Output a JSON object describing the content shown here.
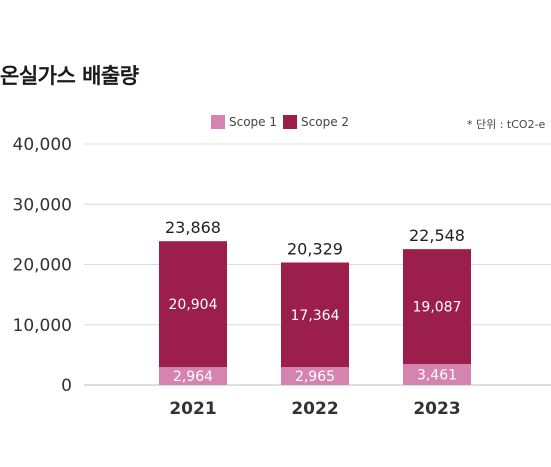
{
  "title": "온실가스 배출량",
  "unit_note": "* 단위 : tCO2-e",
  "colors": {
    "scope1": "#d584b0",
    "scope2": "#9b1f4a",
    "grid": "#dcdcdc",
    "axis": "#bdbdbd"
  },
  "chart_data": {
    "type": "bar",
    "stacked": true,
    "categories": [
      "2021",
      "2022",
      "2023"
    ],
    "series": [
      {
        "name": "Scope 1",
        "values": [
          2964,
          2965,
          3461
        ],
        "labels": [
          "2,964",
          "2,965",
          "3,461"
        ]
      },
      {
        "name": "Scope 2",
        "values": [
          20904,
          17364,
          19087
        ],
        "labels": [
          "20,904",
          "17,364",
          "19,087"
        ]
      }
    ],
    "totals": [
      23868,
      20329,
      22548
    ],
    "total_labels": [
      "23,868",
      "20,329",
      "22,548"
    ],
    "ylim": [
      0,
      40000
    ],
    "yticks": [
      0,
      10000,
      20000,
      30000,
      40000
    ],
    "ytick_labels": [
      "0",
      "10,000",
      "20,000",
      "30,000",
      "40,000"
    ],
    "grid": true,
    "legend_position": "top"
  }
}
